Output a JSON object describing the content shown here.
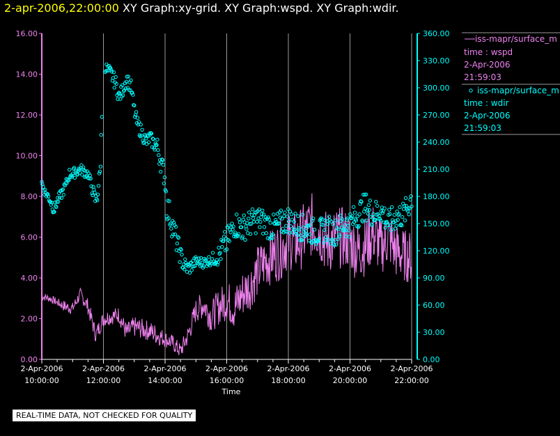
{
  "header": {
    "timestamp": "2-apr-2006,22:00:00",
    "graph_titles": "XY Graph:xy-grid.  XY Graph:wspd.  XY Graph:wdir."
  },
  "legend": {
    "items": [
      {
        "marker": "line",
        "label": "iss-mapr/surface_m",
        "line1": "time : wspd",
        "line2": "2-Apr-2006",
        "line3": "21:59:03",
        "color": "#ee82ee"
      },
      {
        "marker": "circle",
        "label": "iss-mapr/surface_m",
        "line1": "time : wdir",
        "line2": "2-Apr-2006",
        "line3": "21:59:03",
        "color": "#00ffff"
      }
    ]
  },
  "disclaimer": "REAL-TIME DATA, NOT CHECKED FOR QUALITY",
  "colors": {
    "wspd": "#ee82ee",
    "wdir": "#00ffff",
    "grid": "#9a9a9a",
    "axis_left": "#ee82ee",
    "axis_right": "#00ffff",
    "text": "#ffffff"
  },
  "chart_data": {
    "type": "line+scatter",
    "xlabel": "Time",
    "xlim_hours": [
      10,
      22
    ],
    "x_ticks": [
      {
        "hour": 10,
        "date": "2-Apr-2006",
        "time": "10:00:00"
      },
      {
        "hour": 12,
        "date": "2-Apr-2006",
        "time": "12:00:00"
      },
      {
        "hour": 14,
        "date": "2-Apr-2006",
        "time": "14:00:00"
      },
      {
        "hour": 16,
        "date": "2-Apr-2006",
        "time": "16:00:00"
      },
      {
        "hour": 18,
        "date": "2-Apr-2006",
        "time": "18:00:00"
      },
      {
        "hour": 20,
        "date": "2-Apr-2006",
        "time": "20:00:00"
      },
      {
        "hour": 22,
        "date": "2-Apr-2006",
        "time": "22:00:00"
      }
    ],
    "grid_hours": [
      12,
      14,
      16,
      18,
      20,
      22
    ],
    "left_axis": {
      "series": "wspd",
      "ylim": [
        0,
        16
      ],
      "ticks": [
        "0.00",
        "2.00",
        "4.00",
        "6.00",
        "8.00",
        "10.00",
        "12.00",
        "14.00",
        "16.00"
      ]
    },
    "right_axis": {
      "series": "wdir",
      "ylim": [
        0,
        360
      ],
      "ticks": [
        "0.00",
        "30.00",
        "60.00",
        "90.00",
        "120.00",
        "150.00",
        "180.00",
        "210.00",
        "240.00",
        "270.00",
        "300.00",
        "330.00",
        "360.00"
      ]
    },
    "series": [
      {
        "name": "wspd",
        "style": "line",
        "axis": "left",
        "x": [
          10.0,
          10.25,
          10.5,
          10.75,
          11.0,
          11.25,
          11.5,
          11.75,
          12.0,
          12.25,
          12.5,
          12.75,
          13.0,
          13.25,
          13.5,
          13.75,
          14.0,
          14.25,
          14.5,
          14.75,
          15.0,
          15.25,
          15.5,
          15.75,
          16.0,
          16.25,
          16.5,
          16.75,
          17.0,
          17.25,
          17.5,
          17.75,
          18.0,
          18.25,
          18.5,
          18.75,
          19.0,
          19.25,
          19.5,
          19.75,
          20.0,
          20.25,
          20.5,
          20.75,
          21.0,
          21.25,
          21.5,
          21.75,
          22.0
        ],
        "y": [
          3.1,
          3.0,
          2.8,
          2.6,
          2.5,
          3.2,
          2.6,
          1.2,
          2.0,
          2.1,
          2.2,
          1.3,
          1.6,
          1.5,
          1.4,
          1.2,
          1.0,
          0.8,
          0.4,
          1.2,
          2.4,
          2.7,
          2.1,
          2.6,
          2.9,
          2.5,
          3.2,
          3.6,
          4.3,
          4.8,
          5.1,
          5.4,
          5.9,
          5.7,
          6.1,
          6.6,
          6.4,
          5.7,
          5.9,
          6.0,
          5.8,
          5.3,
          5.6,
          6.2,
          5.5,
          6.0,
          5.3,
          5.1,
          5.0
        ],
        "noise": [
          0.2,
          0.2,
          0.2,
          0.3,
          0.3,
          0.3,
          0.4,
          0.4,
          0.4,
          0.4,
          0.4,
          0.5,
          0.5,
          0.5,
          0.5,
          0.5,
          0.4,
          0.4,
          0.4,
          0.5,
          0.6,
          0.7,
          0.8,
          0.9,
          1.0,
          1.1,
          1.2,
          1.2,
          1.3,
          1.3,
          1.4,
          1.5,
          1.5,
          1.5,
          1.6,
          1.6,
          1.6,
          1.6,
          1.6,
          1.5,
          1.5,
          1.5,
          1.5,
          1.5,
          1.4,
          1.4,
          1.4,
          1.3,
          1.3
        ]
      },
      {
        "name": "wdir",
        "style": "circle",
        "axis": "right",
        "x": [
          10.0,
          10.1,
          10.25,
          10.4,
          10.5,
          10.6,
          10.75,
          10.9,
          11.0,
          11.25,
          11.5,
          11.75,
          11.8,
          11.9,
          12.0,
          12.1,
          12.25,
          12.4,
          12.5,
          12.6,
          12.75,
          12.9,
          13.0,
          13.1,
          13.25,
          13.4,
          13.5,
          13.6,
          13.75,
          13.85,
          14.0,
          14.05,
          14.15,
          14.3,
          14.5,
          14.6,
          14.75,
          15.0,
          15.25,
          15.5,
          15.75,
          15.9,
          16.0,
          16.15,
          16.25,
          16.5,
          16.75,
          17.0,
          17.25,
          17.5,
          17.75,
          18.0,
          18.25,
          18.5,
          18.75,
          19.0,
          19.25,
          19.5,
          19.75,
          20.0,
          20.25,
          20.5,
          20.75,
          21.0,
          21.25,
          21.5,
          21.75,
          21.9,
          22.0
        ],
        "y": [
          195,
          185,
          178,
          165,
          175,
          180,
          190,
          205,
          205,
          210,
          205,
          175,
          180,
          210,
          330,
          320,
          315,
          305,
          290,
          295,
          310,
          300,
          275,
          260,
          250,
          240,
          245,
          240,
          235,
          220,
          200,
          170,
          160,
          140,
          115,
          105,
          100,
          108,
          107,
          110,
          115,
          125,
          130,
          140,
          150,
          145,
          150,
          155,
          150,
          145,
          150,
          155,
          148,
          145,
          142,
          140,
          145,
          140,
          148,
          150,
          160,
          170,
          160,
          165,
          150,
          158,
          160,
          170,
          180
        ],
        "noise": [
          5,
          5,
          6,
          6,
          6,
          6,
          6,
          6,
          6,
          6,
          6,
          8,
          8,
          8,
          6,
          8,
          8,
          8,
          8,
          8,
          8,
          8,
          8,
          8,
          8,
          8,
          8,
          8,
          10,
          12,
          12,
          15,
          15,
          15,
          10,
          10,
          8,
          6,
          6,
          6,
          12,
          15,
          15,
          15,
          15,
          15,
          15,
          15,
          15,
          15,
          15,
          15,
          15,
          15,
          15,
          15,
          15,
          15,
          15,
          15,
          15,
          15,
          15,
          15,
          15,
          15,
          15,
          15,
          15
        ]
      }
    ]
  }
}
